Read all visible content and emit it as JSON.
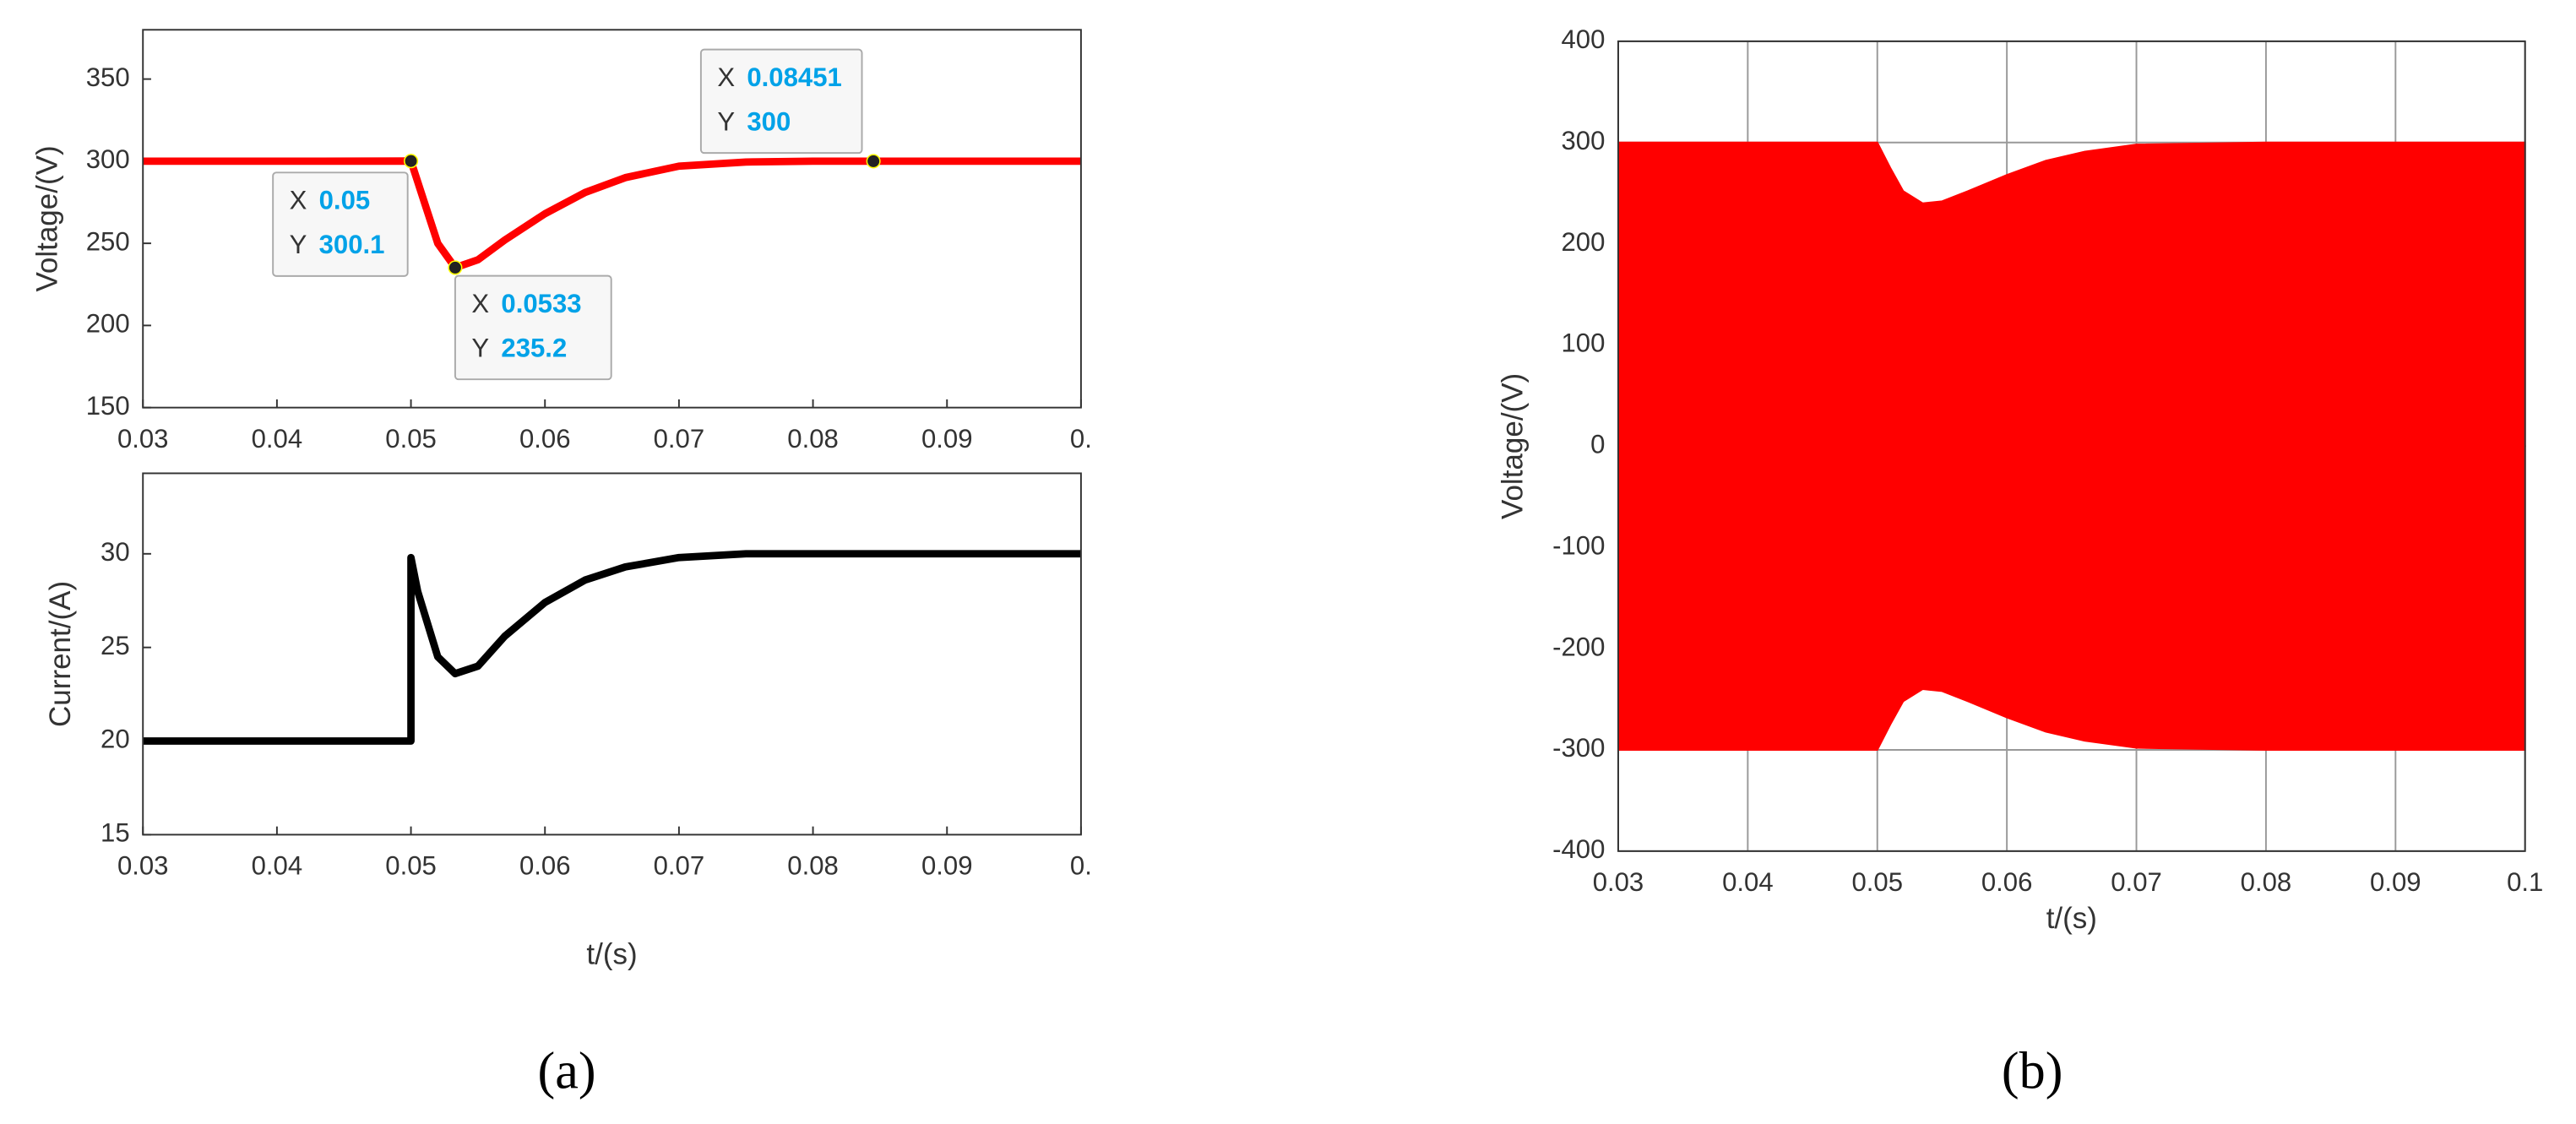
{
  "chart_data": [
    {
      "type": "line",
      "y_label": "Voltage/(V)",
      "color": "#ff0000",
      "grid": false,
      "x": [
        0.03,
        0.04,
        0.05,
        0.051,
        0.052,
        0.0533,
        0.055,
        0.057,
        0.06,
        0.063,
        0.066,
        0.07,
        0.075,
        0.08,
        0.08451,
        0.09,
        0.1
      ],
      "values": [
        300,
        300,
        300.1,
        275,
        250,
        235.2,
        240,
        252,
        268,
        281,
        290,
        297,
        299.5,
        300,
        300,
        300,
        300
      ],
      "xlim": [
        0.03,
        0.1
      ],
      "xticks": [
        0.03,
        0.04,
        0.05,
        0.06,
        0.07,
        0.08,
        0.09,
        {
          "value": 0.1,
          "label": "0."
        }
      ],
      "ylim": [
        150,
        380
      ],
      "yticks": [
        150,
        200,
        250,
        300,
        350
      ],
      "datatip_labels": [
        "X",
        "Y"
      ],
      "datatips": [
        {
          "x": 0.05,
          "y": 300.1
        },
        {
          "x": 0.0533,
          "y": 235.2
        },
        {
          "x": 0.08451,
          "y": 300
        }
      ]
    },
    {
      "type": "line",
      "y_label": "Current/(A)",
      "x_label": "t/(s)",
      "color": "#000000",
      "grid": false,
      "x": [
        0.03,
        0.04,
        0.05,
        0.05,
        0.0505,
        0.052,
        0.0533,
        0.055,
        0.057,
        0.06,
        0.063,
        0.066,
        0.07,
        0.075,
        0.08,
        0.09,
        0.1
      ],
      "values": [
        20,
        20,
        20,
        29.8,
        28,
        24.5,
        23.6,
        24,
        25.6,
        27.4,
        28.6,
        29.3,
        29.8,
        30,
        30,
        30,
        30
      ],
      "xlim": [
        0.03,
        0.1
      ],
      "xticks": [
        0.03,
        0.04,
        0.05,
        0.06,
        0.07,
        0.08,
        0.09,
        {
          "value": 0.1,
          "label": "0."
        }
      ],
      "ylim": [
        15,
        34.3
      ],
      "yticks": [
        15,
        20,
        25,
        30
      ]
    },
    {
      "type": "band",
      "y_label": "Voltage/(V)",
      "x_label": "t/(s)",
      "color": "#ff0000",
      "grid": true,
      "x": [
        0.03,
        0.05,
        0.051,
        0.052,
        0.0535,
        0.055,
        0.057,
        0.06,
        0.063,
        0.066,
        0.07,
        0.08,
        0.1
      ],
      "upper": [
        300,
        300,
        275,
        252,
        240,
        242,
        252,
        268,
        282,
        291,
        298,
        300,
        300
      ],
      "lower": [
        -300,
        -300,
        -275,
        -252,
        -240,
        -242,
        -252,
        -268,
        -282,
        -291,
        -298,
        -300,
        -300
      ],
      "xlim": [
        0.03,
        0.1
      ],
      "xticks": [
        0.03,
        0.04,
        0.05,
        0.06,
        0.07,
        0.08,
        0.09,
        0.1
      ],
      "ylim": [
        -400,
        400
      ],
      "yticks": [
        -400,
        -300,
        -200,
        -100,
        0,
        100,
        200,
        300,
        400
      ]
    }
  ],
  "captions": [
    "(a)",
    "(b)"
  ]
}
